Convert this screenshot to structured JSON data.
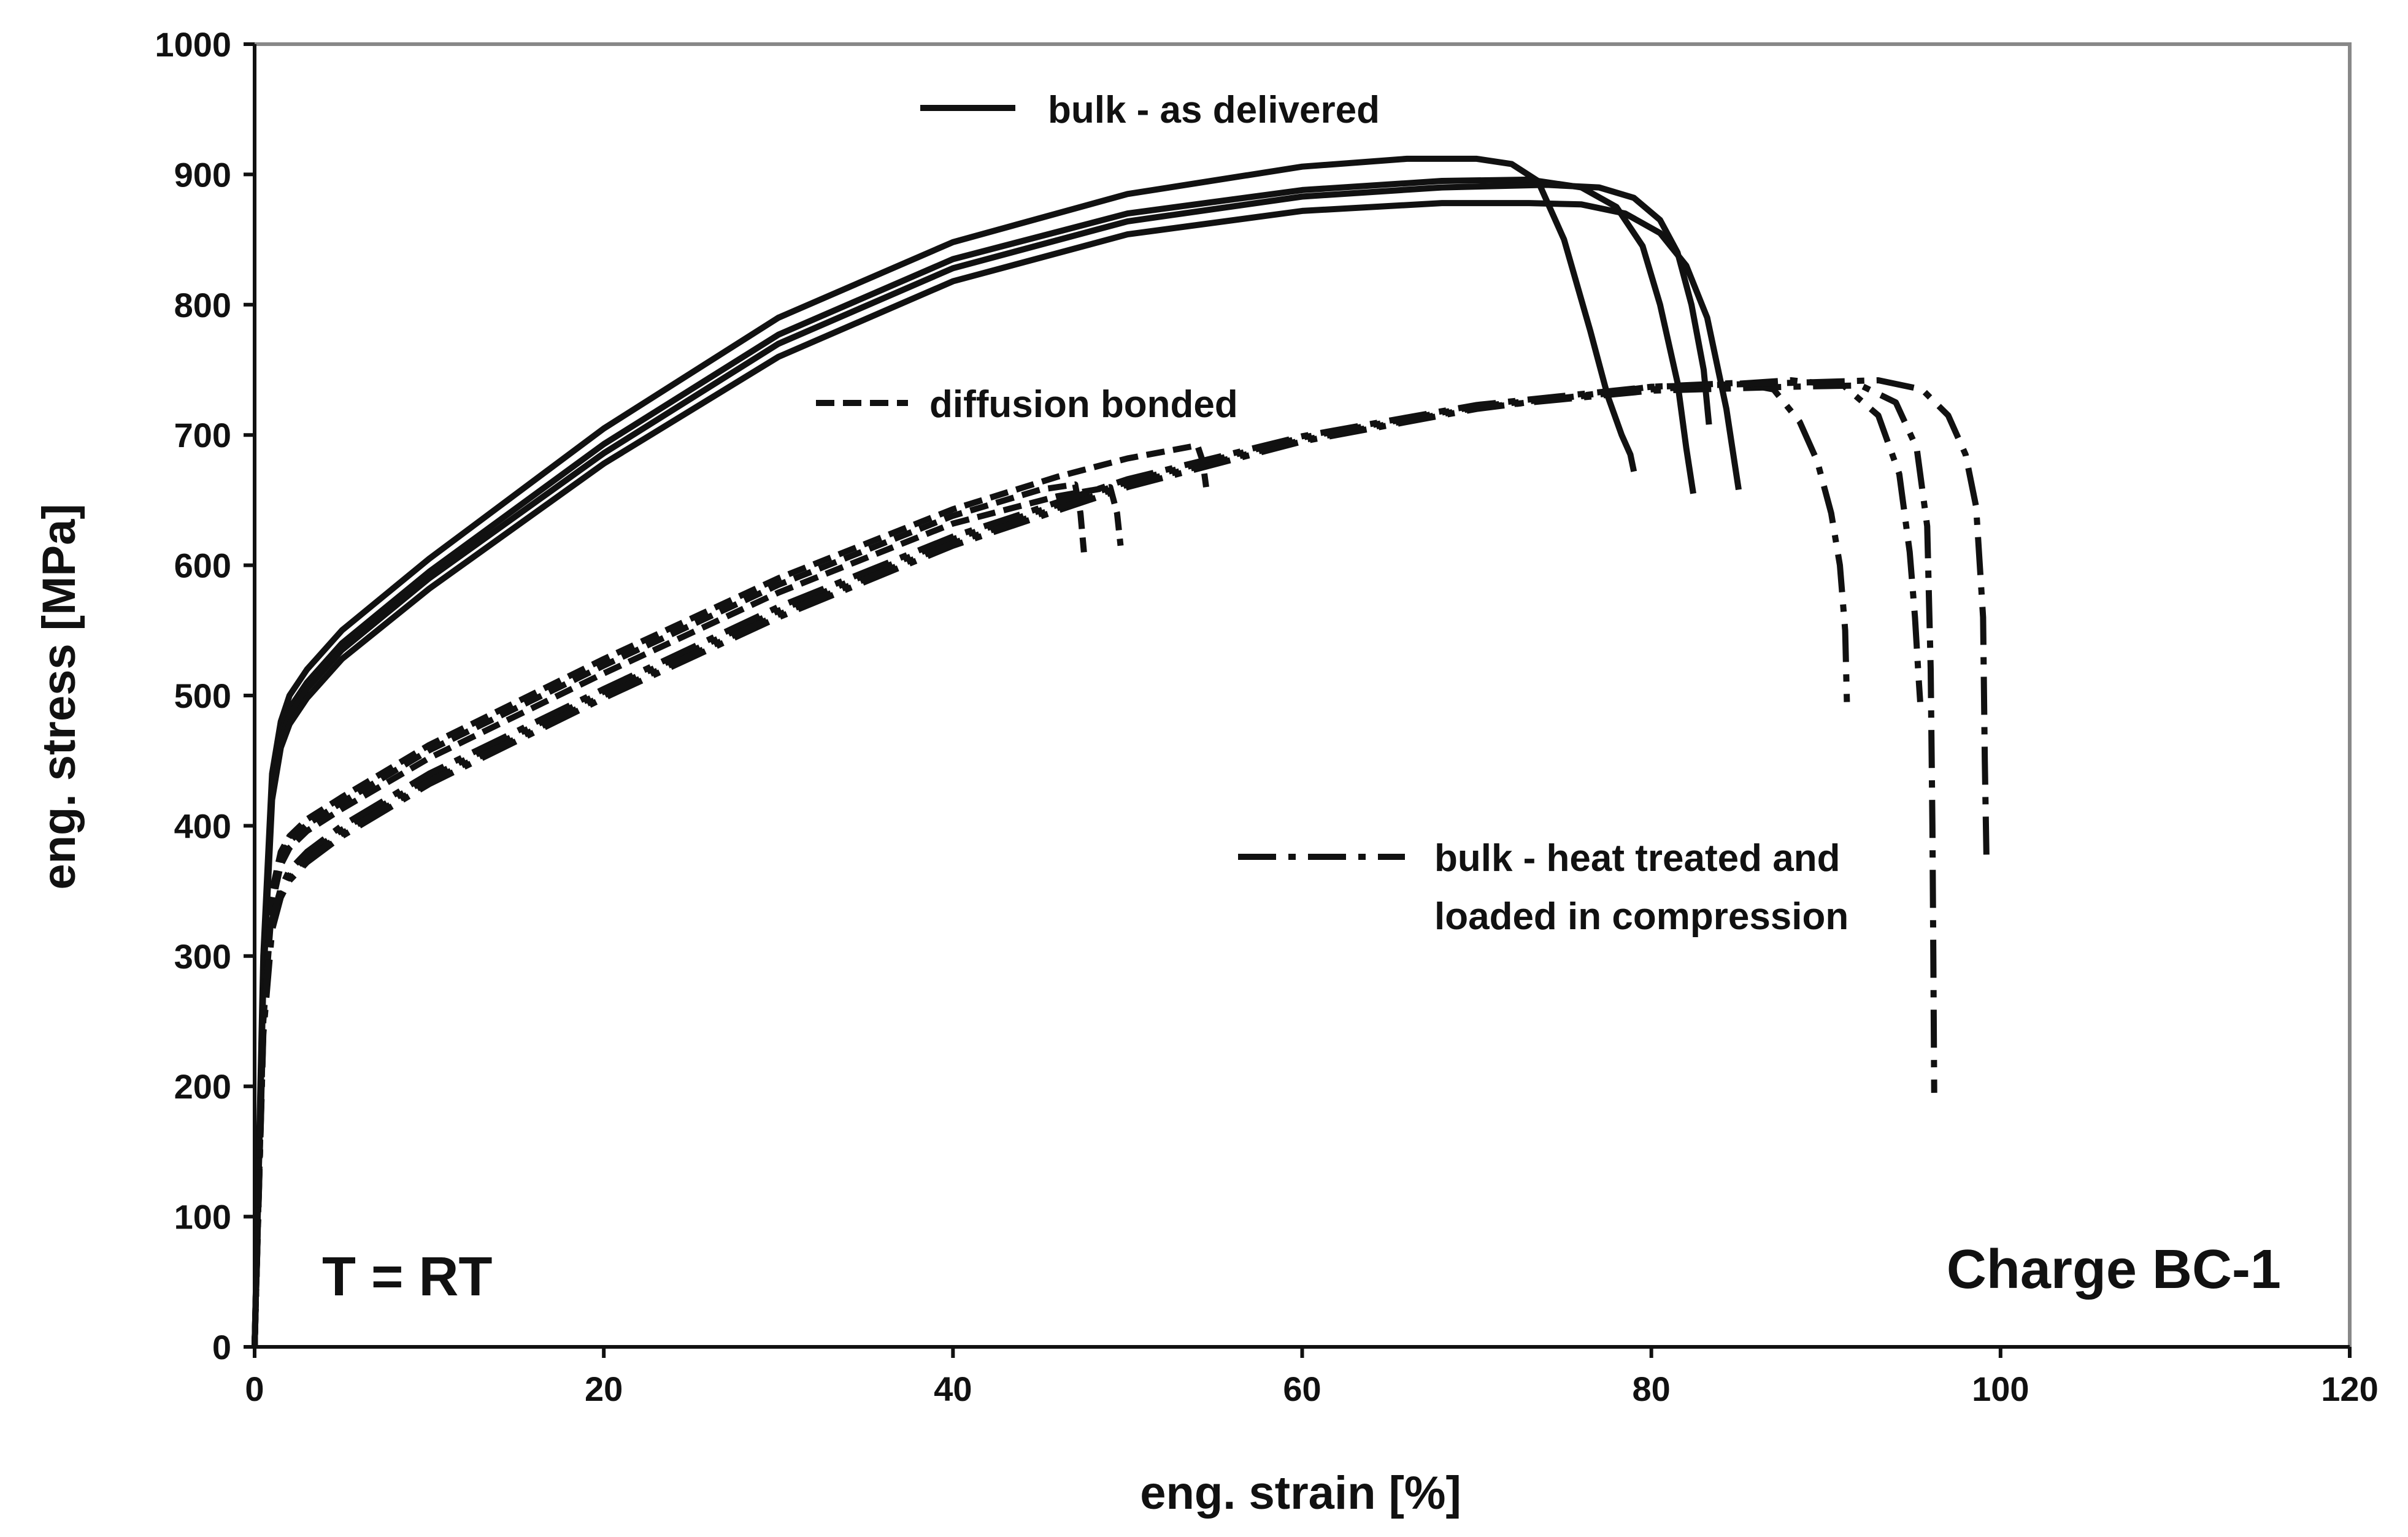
{
  "chart_data": {
    "type": "line",
    "xlabel": "eng. strain [%]",
    "ylabel": "eng. stress [MPa]",
    "xlim": [
      0,
      120
    ],
    "ylim": [
      0,
      1000
    ],
    "xticks": [
      0,
      20,
      40,
      60,
      80,
      100,
      120
    ],
    "yticks": [
      0,
      100,
      200,
      300,
      400,
      500,
      600,
      700,
      800,
      900,
      1000
    ],
    "grid": false,
    "legend_position": "inside, upper-center and right",
    "annotations": [
      "T = RT",
      "Charge BC-1"
    ],
    "legend": [
      {
        "label": "bulk - as delivered",
        "style": "solid"
      },
      {
        "label": "diffusion bonded",
        "style": "dashed"
      },
      {
        "label_lines": [
          "bulk - heat treated and",
          "loaded in compression"
        ],
        "style": "dash-dot"
      }
    ],
    "groups": [
      {
        "style": "solid",
        "series": [
          {
            "x": [
              0,
              0.5,
              1.0,
              1.5,
              2,
              3,
              5,
              10,
              20,
              30,
              40,
              50,
              60,
              66,
              70,
              72,
              73.5,
              75,
              76.5,
              77.5,
              78.3,
              78.8,
              79
            ],
            "y": [
              0,
              300,
              440,
              480,
              500,
              520,
              550,
              605,
              705,
              790,
              848,
              885,
              906,
              912,
              912,
              908,
              895,
              850,
              780,
              730,
              700,
              685,
              672
            ]
          },
          {
            "x": [
              0,
              0.5,
              1.0,
              1.5,
              2,
              3,
              5,
              10,
              20,
              30,
              40,
              50,
              60,
              68,
              73,
              76,
              78,
              79.5,
              80.5,
              81.5,
              82,
              82.4
            ],
            "y": [
              0,
              290,
              430,
              470,
              490,
              510,
              540,
              595,
              693,
              777,
              835,
              870,
              888,
              895,
              896,
              890,
              875,
              845,
              800,
              740,
              690,
              655
            ]
          },
          {
            "x": [
              0,
              0.5,
              1.0,
              1.5,
              2,
              3,
              5,
              10,
              20,
              30,
              40,
              50,
              60,
              68,
              74,
              77,
              79,
              80.5,
              81.5,
              82.3,
              83,
              83.3
            ],
            "y": [
              0,
              285,
              425,
              465,
              485,
              505,
              535,
              590,
              686,
              770,
              828,
              864,
              883,
              890,
              892,
              890,
              882,
              865,
              840,
              800,
              750,
              708
            ]
          },
          {
            "x": [
              0,
              0.5,
              1.0,
              1.5,
              2,
              3,
              5,
              10,
              20,
              30,
              40,
              50,
              60,
              68,
              73,
              76,
              78.5,
              80.5,
              82,
              83.2,
              84.3,
              85
            ],
            "y": [
              0,
              280,
              420,
              460,
              478,
              498,
              528,
              582,
              678,
              760,
              818,
              854,
              872,
              878,
              878,
              877,
              870,
              855,
              830,
              790,
              720,
              658
            ]
          }
        ]
      },
      {
        "style": "dashed",
        "series": [
          {
            "x": [
              0,
              0.5,
              1,
              1.5,
              2,
              3,
              5,
              10,
              20,
              30,
              40,
              46,
              50,
              54,
              54.3,
              54.5
            ],
            "y": [
              0,
              260,
              350,
              380,
              392,
              405,
              422,
              462,
              528,
              590,
              643,
              668,
              682,
              692,
              680,
              660
            ]
          },
          {
            "x": [
              0,
              0.5,
              1,
              1.5,
              2,
              3,
              5,
              10,
              20,
              30,
              40,
              45,
              47,
              47.3,
              47.5
            ],
            "y": [
              0,
              255,
              345,
              375,
              388,
              401,
              418,
              458,
              523,
              585,
              638,
              658,
              662,
              640,
              610
            ]
          },
          {
            "x": [
              0,
              0.5,
              1,
              1.5,
              2,
              3,
              5,
              10,
              20,
              30,
              40,
              46,
              49,
              49.4,
              49.6
            ],
            "y": [
              0,
              250,
              340,
              370,
              383,
              396,
              413,
              452,
              517,
              579,
              632,
              653,
              660,
              640,
              615
            ]
          }
        ]
      },
      {
        "style": "dash-dot",
        "series": [
          {
            "x": [
              0,
              0.5,
              1,
              1.5,
              2,
              3,
              5,
              10,
              20,
              30,
              40,
              50,
              60,
              70,
              80,
              85,
              87,
              88.5,
              89.5,
              90.3,
              90.8,
              91.1,
              91.2
            ],
            "y": [
              0,
              240,
              320,
              345,
              358,
              372,
              392,
              432,
              498,
              560,
              615,
              660,
              695,
              720,
              737,
              740,
              735,
              710,
              680,
              640,
              600,
              550,
              495
            ]
          },
          {
            "x": [
              0,
              0.5,
              1,
              1.5,
              2,
              3,
              5,
              10,
              20,
              30,
              40,
              50,
              60,
              70,
              80,
              88,
              91,
              93,
              94.2,
              94.8,
              95.1,
              95.3,
              95.4
            ],
            "y": [
              0,
              245,
              325,
              350,
              362,
              377,
              397,
              437,
              503,
              565,
              620,
              664,
              698,
              722,
              735,
              742,
              738,
              715,
              670,
              610,
              560,
              515,
              495
            ]
          },
          {
            "x": [
              0,
              0.5,
              1,
              1.5,
              2,
              3,
              5,
              10,
              20,
              30,
              40,
              50,
              60,
              70,
              80,
              88,
              92,
              94,
              95.2,
              95.8,
              96.0,
              96.1,
              96.15,
              96.2
            ],
            "y": [
              0,
              242,
              322,
              347,
              360,
              374,
              394,
              434,
              500,
              562,
              617,
              662,
              696,
              721,
              734,
              737,
              738,
              725,
              690,
              630,
              520,
              400,
              300,
              195
            ]
          },
          {
            "x": [
              0,
              0.5,
              1,
              1.5,
              2,
              3,
              5,
              10,
              20,
              30,
              40,
              50,
              60,
              70,
              80,
              88,
              93,
              95.5,
              97,
              98,
              98.6,
              99.0,
              99.1,
              99.2
            ],
            "y": [
              0,
              248,
              328,
              352,
              366,
              380,
              400,
              440,
              505,
              568,
              622,
              666,
              699,
              723,
              737,
              740,
              742,
              735,
              715,
              685,
              645,
              560,
              450,
              370
            ]
          }
        ]
      }
    ]
  }
}
